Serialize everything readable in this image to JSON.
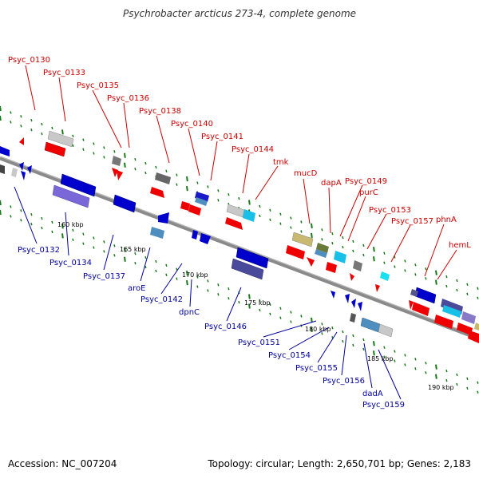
{
  "title": "Psychrobacter arcticus 273-4, complete genome",
  "footer": {
    "accession": "Accession: NC_007204",
    "summary": "Topology: circular; Length: 2,650,701 bp; Genes: 2,183"
  },
  "colors": {
    "forward_label": "#cc0000",
    "reverse_label": "#00009c",
    "backbone": "#8a8a8a",
    "tick": "#1a7a1a"
  },
  "kbp_ticks": [
    "160 kbp",
    "165 kbp",
    "170 kbp",
    "175 kbp",
    "180 kbp",
    "185 kbp",
    "190 kbp"
  ],
  "top_labels": [
    "Psyc_0130",
    "Psyc_0133",
    "Psyc_0135",
    "Psyc_0136",
    "Psyc_0138",
    "Psyc_0140",
    "Psyc_0141",
    "Psyc_0144",
    "tmk",
    "mucD",
    "dapA",
    "Psyc_0149",
    "purC",
    "Psyc_0153",
    "Psyc_0157",
    "phnA",
    "hemL"
  ],
  "bottom_labels": [
    "Psyc_0132",
    "Psyc_0134",
    "Psyc_0137",
    "aroE",
    "Psyc_0142",
    "dpnC",
    "Psyc_0146",
    "Psyc_0151",
    "Psyc_0154",
    "Psyc_0155",
    "Psyc_0156",
    "dadA",
    "Psyc_0159"
  ]
}
